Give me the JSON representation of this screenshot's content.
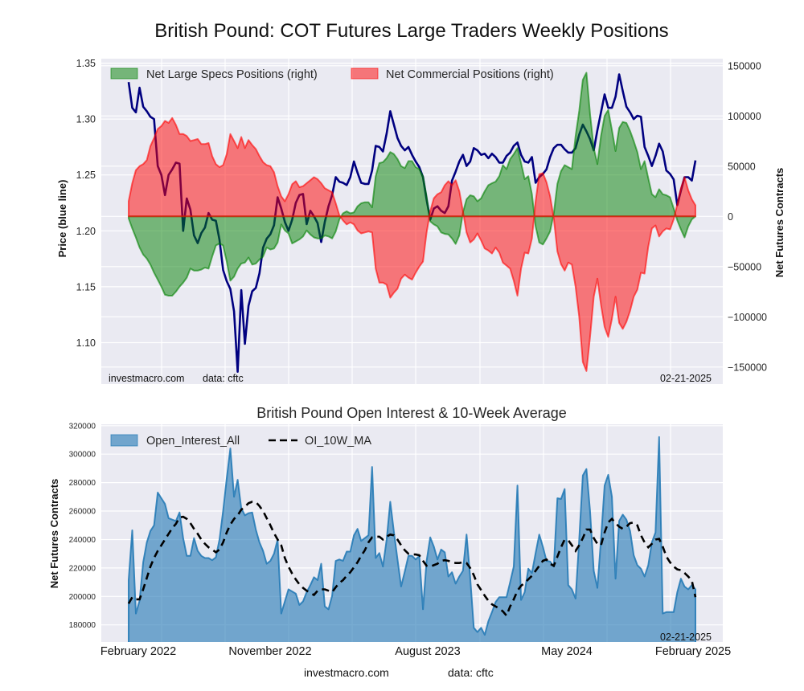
{
  "page": {
    "footer_site": "investmacro.com",
    "footer_source": "data: cftc"
  },
  "chart_data": [
    {
      "type": "area",
      "title": "British Pound: COT Futures Large Traders Weekly Positions",
      "last_date": "02-21-2025",
      "watermark": "investmacro.com",
      "source": "data: cftc",
      "grid": true,
      "y_left": {
        "label": "Price (blue line)",
        "ticks": [
          1.1,
          1.15,
          1.2,
          1.25,
          1.3,
          1.35
        ],
        "tick_labels": [
          "1.10",
          "1.15",
          "1.20",
          "1.25",
          "1.30",
          "1.35"
        ],
        "lim": [
          1.063,
          1.354
        ]
      },
      "y_right": {
        "label": "Net Futures Contracts",
        "ticks": [
          -150000,
          -100000,
          -50000,
          0,
          50000,
          100000,
          150000
        ],
        "tick_labels": [
          "−150000",
          "−100000",
          "−50000",
          "0",
          "50000",
          "100000",
          "150000"
        ],
        "lim": [
          -167000,
          157000
        ]
      },
      "legend": {
        "position": "top-left",
        "entries": [
          "Net Large Specs Positions (right)",
          "Net Commercial Positions (right)"
        ]
      },
      "series": [
        {
          "name": "Price (blue line)",
          "axis": "left",
          "kind": "line",
          "color": "#000080",
          "values": [
            1.333,
            1.31,
            1.306,
            1.328,
            1.311,
            1.307,
            1.302,
            1.3,
            1.258,
            1.25,
            1.232,
            1.25,
            1.255,
            1.261,
            1.26,
            1.2,
            1.229,
            1.219,
            1.196,
            1.189,
            1.198,
            1.203,
            1.216,
            1.21,
            1.209,
            1.192,
            1.165,
            1.155,
            1.148,
            1.128,
            1.074,
            1.147,
            1.099,
            1.133,
            1.146,
            1.149,
            1.162,
            1.185,
            1.193,
            1.197,
            1.205,
            1.23,
            1.22,
            1.208,
            1.2,
            1.21,
            1.225,
            1.232,
            1.233,
            1.206,
            1.218,
            1.213,
            1.207,
            1.19,
            1.208,
            1.222,
            1.232,
            1.248,
            1.244,
            1.243,
            1.241,
            1.248,
            1.262,
            1.252,
            1.243,
            1.242,
            1.242,
            1.254,
            1.276,
            1.275,
            1.271,
            1.287,
            1.307,
            1.295,
            1.283,
            1.276,
            1.272,
            1.275,
            1.268,
            1.262,
            1.257,
            1.248,
            1.228,
            1.21,
            1.22,
            1.222,
            1.218,
            1.216,
            1.222,
            1.245,
            1.253,
            1.262,
            1.268,
            1.258,
            1.262,
            1.274,
            1.272,
            1.268,
            1.269,
            1.265,
            1.269,
            1.266,
            1.261,
            1.261,
            1.267,
            1.27,
            1.276,
            1.279,
            1.268,
            1.262,
            1.261,
            1.266,
            1.243,
            1.248,
            1.251,
            1.255,
            1.266,
            1.274,
            1.277,
            1.277,
            1.273,
            1.27,
            1.27,
            1.274,
            1.286,
            1.295,
            1.289,
            1.282,
            1.272,
            1.29,
            1.306,
            1.322,
            1.31,
            1.31,
            1.32,
            1.34,
            1.325,
            1.311,
            1.306,
            1.3,
            1.303,
            1.302,
            1.275,
            1.267,
            1.258,
            1.267,
            1.278,
            1.271,
            1.254,
            1.251,
            1.246,
            1.223,
            1.236,
            1.248,
            1.248,
            1.245,
            1.263
          ]
        },
        {
          "name": "Net Large Specs Positions (right)",
          "axis": "right",
          "kind": "area",
          "color": "#008000",
          "values": [
            -2000,
            -12000,
            -21000,
            -31000,
            -38000,
            -42000,
            -48000,
            -56000,
            -63000,
            -70000,
            -78000,
            -79000,
            -79000,
            -75000,
            -70000,
            -66000,
            -61000,
            -52000,
            -54000,
            -54000,
            -53000,
            -51000,
            -52000,
            -40000,
            -29000,
            -27000,
            -29000,
            -45000,
            -64000,
            -60000,
            -52000,
            -47000,
            -46000,
            -41000,
            -48000,
            -47000,
            -43000,
            -40000,
            -31000,
            -33000,
            -32000,
            -26000,
            -8000,
            -14000,
            -17000,
            -27000,
            -25000,
            -23000,
            -20000,
            -14000,
            -18000,
            -21000,
            -22000,
            -22000,
            -19000,
            -20000,
            -22000,
            -15000,
            -3000,
            3000,
            5000,
            3000,
            4000,
            10000,
            13000,
            14000,
            14000,
            9000,
            40000,
            53000,
            54000,
            58000,
            64000,
            62000,
            57000,
            50000,
            48000,
            55000,
            55000,
            49000,
            47000,
            40000,
            20000,
            -5000,
            -8000,
            -10000,
            -16000,
            -17500,
            -18000,
            -22000,
            -27500,
            -19000,
            4000,
            17000,
            21000,
            20000,
            15000,
            18000,
            25000,
            31000,
            33000,
            34500,
            40000,
            51000,
            47000,
            57000,
            62000,
            68000,
            53000,
            37000,
            40000,
            22000,
            -10000,
            -26000,
            -28000,
            -22000,
            -15000,
            3000,
            32500,
            45000,
            51000,
            49000,
            47000,
            80000,
            105000,
            136000,
            143000,
            102000,
            68000,
            52000,
            80000,
            100000,
            106000,
            86000,
            65000,
            88000,
            94000,
            93000,
            85000,
            75000,
            64000,
            47000,
            55000,
            38000,
            22000,
            19000,
            27000,
            22000,
            21000,
            19000,
            8000,
            -4000,
            -13000,
            -21000,
            -10000,
            -3000,
            0
          ]
        },
        {
          "name": "Net Commercial Positions (right)",
          "axis": "right",
          "kind": "area",
          "color": "#ff0000",
          "values": [
            15000,
            33000,
            46000,
            50000,
            52000,
            56000,
            70000,
            78000,
            87000,
            90000,
            95000,
            93000,
            98000,
            91000,
            82000,
            82000,
            80000,
            75000,
            76000,
            77000,
            72000,
            72000,
            73000,
            60000,
            52000,
            49000,
            51000,
            62000,
            82000,
            75000,
            68000,
            79000,
            68000,
            76000,
            71000,
            67000,
            60000,
            54000,
            51000,
            50000,
            44000,
            30000,
            20000,
            15000,
            22000,
            32000,
            35000,
            29000,
            30000,
            33000,
            36000,
            39000,
            37000,
            33000,
            28000,
            26000,
            24000,
            13000,
            1000,
            -4000,
            -8000,
            -6000,
            -8000,
            -14000,
            -17000,
            -16000,
            -15000,
            -16000,
            -52000,
            -66000,
            -66000,
            -68000,
            -81000,
            -76000,
            -72000,
            -62000,
            -58000,
            -61000,
            -63000,
            -56000,
            -50000,
            -45000,
            -16000,
            5000,
            18000,
            22000,
            24000,
            31000,
            35000,
            31000,
            36000,
            25000,
            5000,
            -16000,
            -26000,
            -23000,
            -17000,
            -24000,
            -32000,
            -34000,
            -37000,
            -31000,
            -36000,
            -46000,
            -49000,
            -52000,
            -64000,
            -79000,
            -52000,
            -36000,
            -37000,
            -22000,
            15000,
            42000,
            43000,
            34000,
            20000,
            -2000,
            -35000,
            -47500,
            -54000,
            -46000,
            -48000,
            -70000,
            -100000,
            -145000,
            -154000,
            -120000,
            -80000,
            -62000,
            -88000,
            -110000,
            -120000,
            -102000,
            -80000,
            -106000,
            -112000,
            -105000,
            -94000,
            -80000,
            -73000,
            -56000,
            -57000,
            -30000,
            -12000,
            -9000,
            -20000,
            -15000,
            -12000,
            -13000,
            -3000,
            12000,
            28000,
            39000,
            26000,
            17000,
            11000
          ]
        }
      ]
    },
    {
      "type": "area",
      "title": "British Pound Open Interest & 10-Week Average",
      "last_date": "02-21-2025",
      "grid": true,
      "x_ticks": [
        "February 2022",
        "November 2022",
        "August 2023",
        "May 2024",
        "February 2025"
      ],
      "y": {
        "label": "Net Futures Contracts",
        "ticks": [
          180000,
          200000,
          220000,
          240000,
          260000,
          280000,
          300000,
          320000
        ],
        "tick_labels": [
          "180000",
          "200000",
          "220000",
          "240000",
          "260000",
          "280000",
          "300000",
          "320000"
        ],
        "lim": [
          168000,
          321000
        ]
      },
      "legend": {
        "position": "top-left",
        "entries": [
          "Open_Interest_All",
          "OI_10W_MA"
        ]
      },
      "series": [
        {
          "name": "Open_Interest_All",
          "kind": "area",
          "color": "#1f77b4",
          "values": [
            211500,
            246500,
            188000,
            197000,
            224000,
            238000,
            246000,
            250000,
            273000,
            269000,
            265000,
            255000,
            254000,
            253000,
            259000,
            241000,
            228500,
            228500,
            241000,
            232000,
            228500,
            227000,
            227000,
            225500,
            227500,
            240000,
            260000,
            283000,
            304000,
            270000,
            282000,
            262000,
            257000,
            258500,
            259000,
            247000,
            238000,
            232000,
            223000,
            225000,
            230000,
            240000,
            188000,
            196500,
            205000,
            203500,
            202000,
            194000,
            196500,
            203000,
            208000,
            213500,
            211500,
            223000,
            193000,
            191000,
            200500,
            225000,
            226000,
            225000,
            231500,
            231500,
            243000,
            247500,
            239000,
            241000,
            243000,
            291000,
            227000,
            230500,
            221000,
            240000,
            266500,
            245500,
            226000,
            207000,
            217500,
            228500,
            228500,
            226000,
            228500,
            191000,
            225000,
            241500,
            235000,
            226000,
            233000,
            231000,
            214000,
            217000,
            209000,
            214000,
            218000,
            243500,
            213500,
            178000,
            175000,
            178000,
            173000,
            182500,
            189000,
            196000,
            199500,
            199500,
            199500,
            210000,
            221000,
            278000,
            197500,
            203000,
            219500,
            216500,
            230500,
            243500,
            235000,
            225000,
            224500,
            221000,
            269000,
            268500,
            275500,
            208000,
            205000,
            198500,
            240000,
            285000,
            289500,
            260000,
            218000,
            206000,
            240000,
            278000,
            285500,
            270000,
            212500,
            253000,
            257500,
            254000,
            246000,
            229000,
            222000,
            219500,
            214000,
            222000,
            238000,
            245000,
            312000,
            188000,
            189000,
            189000,
            189000,
            203000,
            212500,
            207000,
            205000,
            208000,
            205000
          ]
        },
        {
          "name": "OI_10W_MA",
          "kind": "line",
          "style": "dashed",
          "color": "#000000",
          "values": [
            195000,
            199500,
            198000,
            198000,
            205000,
            213000,
            221000,
            227000,
            232000,
            236000,
            240000,
            244000,
            248000,
            251000,
            255500,
            256000,
            254500,
            251500,
            247500,
            244000,
            240000,
            237000,
            234500,
            233000,
            231000,
            233000,
            238000,
            245000,
            250500,
            254500,
            257000,
            261000,
            263000,
            265500,
            266500,
            266300,
            263500,
            260000,
            255000,
            250000,
            244500,
            240000,
            236000,
            227000,
            221000,
            216000,
            212000,
            208500,
            206000,
            204000,
            202500,
            201000,
            204000,
            205000,
            205000,
            204000,
            203000,
            206500,
            209500,
            211500,
            214500,
            217000,
            220500,
            224000,
            228500,
            232500,
            238000,
            241500,
            242000,
            242000,
            240000,
            242000,
            243500,
            243000,
            240000,
            236000,
            232500,
            230000,
            229500,
            229500,
            229000,
            225000,
            221500,
            221000,
            222000,
            223000,
            225000,
            225500,
            225000,
            224000,
            223500,
            223500,
            224000,
            223500,
            220000,
            215000,
            208500,
            204500,
            200500,
            197000,
            194500,
            193000,
            191500,
            189500,
            186500,
            193000,
            198000,
            204000,
            207500,
            209500,
            212000,
            214500,
            218000,
            221500,
            225000,
            226000,
            223000,
            221500,
            228000,
            234500,
            240000,
            239500,
            236000,
            232000,
            236000,
            241000,
            247000,
            247000,
            241000,
            237000,
            236000,
            245000,
            252000,
            254500,
            251500,
            249000,
            247500,
            249000,
            251500,
            252000,
            250000,
            243000,
            238000,
            234500,
            237000,
            240000,
            240500,
            235000,
            228000,
            224000,
            221000,
            219000,
            218500,
            216500,
            214000,
            211000,
            199500
          ]
        }
      ]
    }
  ]
}
